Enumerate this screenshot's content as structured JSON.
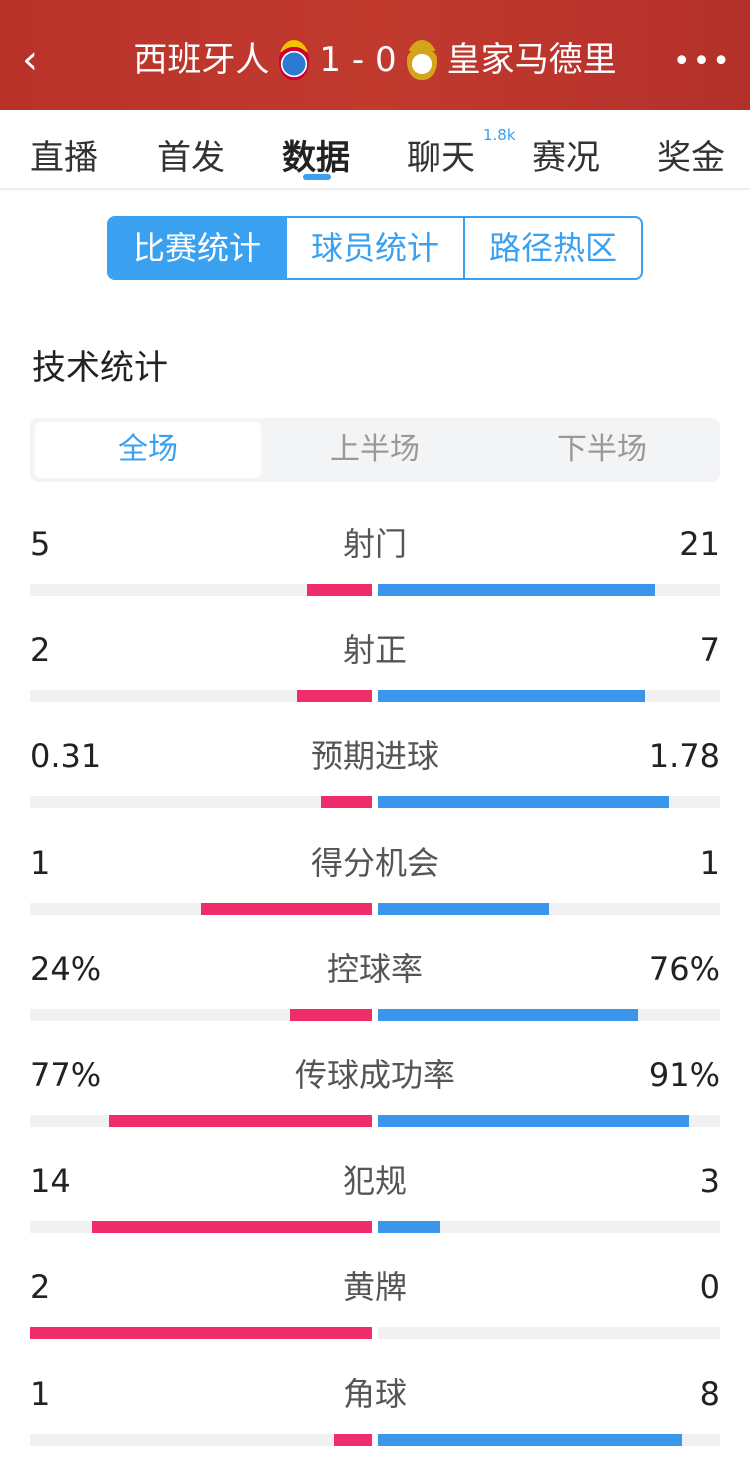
{
  "header": {
    "home": "西班牙人",
    "score": "1 - 0",
    "away": "皇家马德里"
  },
  "tabs": [
    "直播",
    "首发",
    "数据",
    "聊天",
    "赛况",
    "奖金"
  ],
  "chat_count": "1.8k",
  "segments": [
    "比赛统计",
    "球员统计",
    "路径热区"
  ],
  "section_title": "技术统计",
  "periods": [
    "全场",
    "上半场",
    "下半场"
  ],
  "colors": {
    "home": "#ef2d6a",
    "away": "#3a96ea",
    "accent": "#3aa0f0",
    "header": "#b8322a"
  },
  "stats": [
    {
      "label": "射门",
      "home": "5",
      "away": "21",
      "home_fill": 0.19,
      "away_fill": 0.81
    },
    {
      "label": "射正",
      "home": "2",
      "away": "7",
      "home_fill": 0.22,
      "away_fill": 0.78
    },
    {
      "label": "预期进球",
      "home": "0.31",
      "away": "1.78",
      "home_fill": 0.15,
      "away_fill": 0.85
    },
    {
      "label": "得分机会",
      "home": "1",
      "away": "1",
      "home_fill": 0.5,
      "away_fill": 0.5
    },
    {
      "label": "控球率",
      "home": "24%",
      "away": "76%",
      "home_fill": 0.24,
      "away_fill": 0.76
    },
    {
      "label": "传球成功率",
      "home": "77%",
      "away": "91%",
      "home_fill": 0.77,
      "away_fill": 0.91
    },
    {
      "label": "犯规",
      "home": "14",
      "away": "3",
      "home_fill": 0.82,
      "away_fill": 0.18
    },
    {
      "label": "黄牌",
      "home": "2",
      "away": "0",
      "home_fill": 1,
      "away_fill": 0
    },
    {
      "label": "角球",
      "home": "1",
      "away": "8",
      "home_fill": 0.11,
      "away_fill": 0.89
    }
  ]
}
